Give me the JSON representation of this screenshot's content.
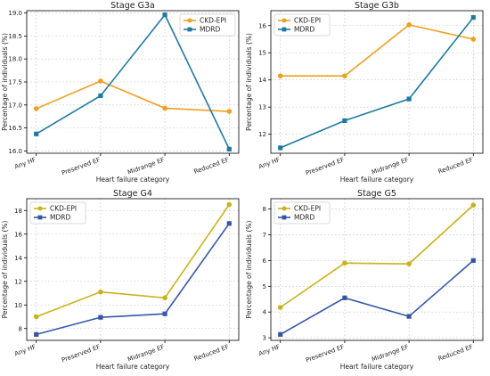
{
  "chart_data": [
    {
      "type": "line",
      "title": "Stage G3a",
      "xlabel": "Heart failure category",
      "ylabel": "Percentage of individuals (%)",
      "categories": [
        "Any HF",
        "Preserved EF",
        "Midrange EF",
        "Reduced EF"
      ],
      "ylim": [
        15.95,
        19.05
      ],
      "yticks": [
        16.0,
        16.5,
        17.0,
        17.5,
        18.0,
        18.5,
        19.0
      ],
      "ytick_labels": [
        "16.0",
        "16.5",
        "17.0",
        "17.5",
        "18.0",
        "18.5",
        "19.0"
      ],
      "grid": true,
      "legend": "top-right",
      "series": [
        {
          "name": "CKD-EPI",
          "color": "#f0a020",
          "marker": "circle",
          "values": [
            16.92,
            17.52,
            16.93,
            16.86
          ]
        },
        {
          "name": "MDRD",
          "color": "#1f7aa3",
          "marker": "square",
          "values": [
            16.37,
            17.2,
            18.96,
            16.04
          ]
        }
      ]
    },
    {
      "type": "line",
      "title": "Stage G3b",
      "xlabel": "Heart failure category",
      "ylabel": "Percentage of individuals (%)",
      "categories": [
        "Any HF",
        "Preserved EF",
        "Midrange EF",
        "Reduced EF"
      ],
      "ylim": [
        11.3,
        16.55
      ],
      "yticks": [
        12,
        13,
        14,
        15,
        16
      ],
      "ytick_labels": [
        "12",
        "13",
        "14",
        "15",
        "16"
      ],
      "grid": true,
      "legend": "top-left",
      "series": [
        {
          "name": "CKD-EPI",
          "color": "#f0a020",
          "marker": "circle",
          "values": [
            14.15,
            14.15,
            16.03,
            15.5
          ]
        },
        {
          "name": "MDRD",
          "color": "#1f7aa3",
          "marker": "square",
          "values": [
            11.5,
            12.5,
            13.3,
            16.3
          ]
        }
      ]
    },
    {
      "type": "line",
      "title": "Stage G4",
      "xlabel": "Heart failure category",
      "ylabel": "Percentage of individuals (%)",
      "categories": [
        "Any HF",
        "Preserved EF",
        "Midrange EF",
        "Reduced EF"
      ],
      "ylim": [
        7.0,
        19.0
      ],
      "yticks": [
        8,
        10,
        12,
        14,
        16,
        18
      ],
      "ytick_labels": [
        "8",
        "10",
        "12",
        "14",
        "16",
        "18"
      ],
      "grid": true,
      "legend": "top-left",
      "series": [
        {
          "name": "CKD-EPI",
          "color": "#c9b21a",
          "marker": "circle",
          "values": [
            9.0,
            11.1,
            10.6,
            18.5
          ]
        },
        {
          "name": "MDRD",
          "color": "#3556a8",
          "marker": "square",
          "values": [
            7.5,
            8.95,
            9.25,
            16.9
          ]
        }
      ]
    },
    {
      "type": "line",
      "title": "Stage G5",
      "xlabel": "Heart failure category",
      "ylabel": "Percentage of individuals (%)",
      "categories": [
        "Any HF",
        "Preserved EF",
        "Midrange EF",
        "Reduced EF"
      ],
      "ylim": [
        2.9,
        8.4
      ],
      "yticks": [
        3,
        4,
        5,
        6,
        7,
        8
      ],
      "ytick_labels": [
        "3",
        "4",
        "5",
        "6",
        "7",
        "8"
      ],
      "grid": true,
      "legend": "top-left",
      "series": [
        {
          "name": "CKD-EPI",
          "color": "#c9b21a",
          "marker": "circle",
          "values": [
            4.18,
            5.9,
            5.87,
            8.15
          ]
        },
        {
          "name": "MDRD",
          "color": "#3556a8",
          "marker": "square",
          "values": [
            3.13,
            4.55,
            3.83,
            6.0
          ]
        }
      ]
    }
  ]
}
